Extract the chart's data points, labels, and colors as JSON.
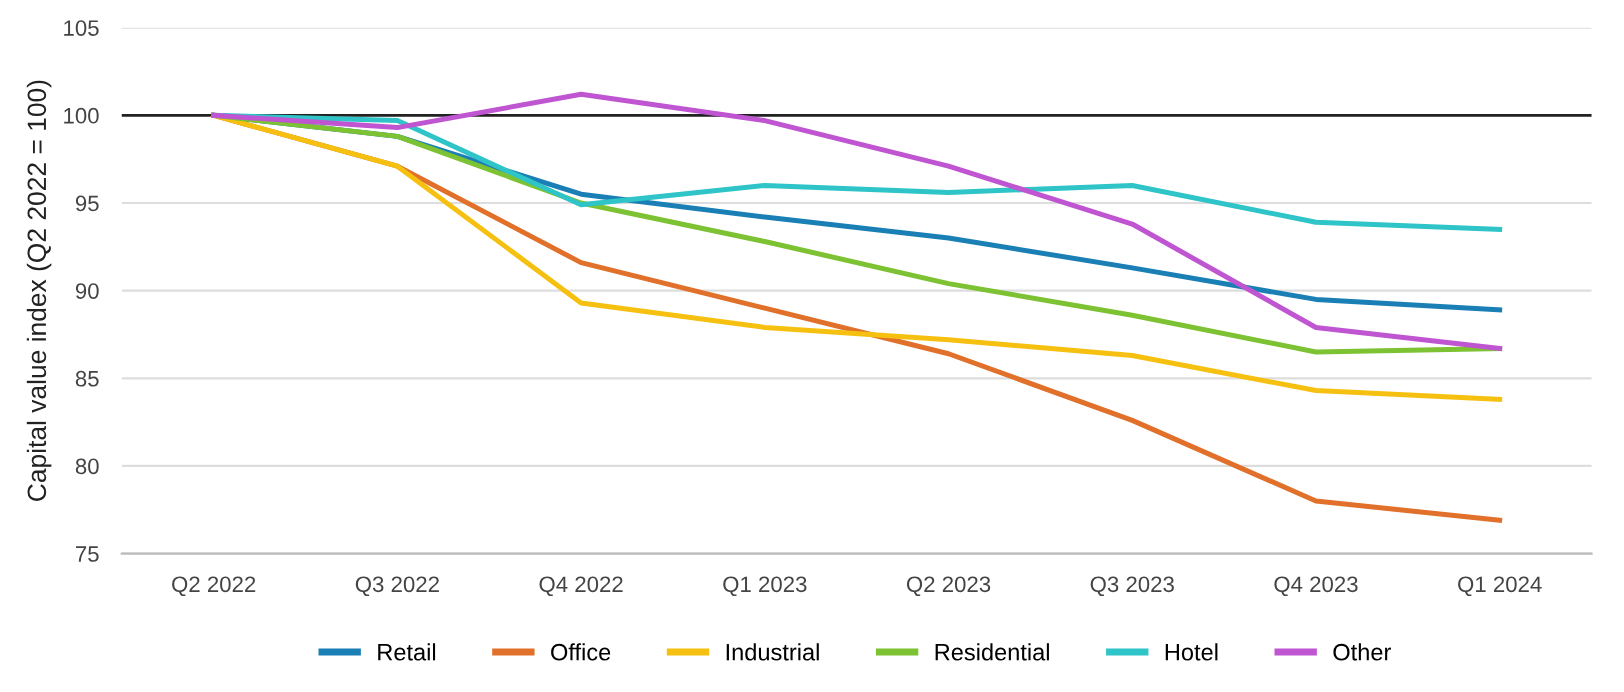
{
  "chart_data": {
    "type": "line",
    "ylabel": "Capital value index (Q2 2022 = 100)",
    "categories": [
      "Q2 2022",
      "Q3 2022",
      "Q4 2022",
      "Q1 2023",
      "Q2 2023",
      "Q3 2023",
      "Q4 2023",
      "Q1 2024"
    ],
    "series": [
      {
        "name": "Retail",
        "color": "#1a7fb5",
        "values": [
          100,
          98.8,
          95.5,
          94.2,
          93.0,
          91.3,
          89.5,
          88.9
        ]
      },
      {
        "name": "Office",
        "color": "#e0702a",
        "values": [
          100,
          97.1,
          91.6,
          89.0,
          86.4,
          82.6,
          78.0,
          76.9
        ]
      },
      {
        "name": "Industrial",
        "color": "#f5c010",
        "values": [
          100,
          97.1,
          89.3,
          87.9,
          87.2,
          86.3,
          84.3,
          83.8
        ]
      },
      {
        "name": "Residential",
        "color": "#7cc232",
        "values": [
          100,
          98.8,
          95.0,
          92.8,
          90.4,
          88.6,
          86.5,
          86.7
        ]
      },
      {
        "name": "Hotel",
        "color": "#2ec4c8",
        "values": [
          100,
          99.7,
          94.9,
          96.0,
          95.6,
          96.0,
          93.9,
          93.5
        ]
      },
      {
        "name": "Other",
        "color": "#c055d2",
        "values": [
          100,
          99.3,
          101.2,
          99.7,
          97.1,
          93.8,
          87.9,
          86.7
        ]
      }
    ],
    "ylim": [
      75,
      105
    ],
    "yticks": [
      75,
      80,
      85,
      90,
      95,
      100,
      105
    ],
    "ref_lines": [
      {
        "axis": "y",
        "value": 100,
        "color": "#222222"
      }
    ],
    "grid": "y",
    "legend": "bottom",
    "marker": "none",
    "line_style": "solid"
  }
}
